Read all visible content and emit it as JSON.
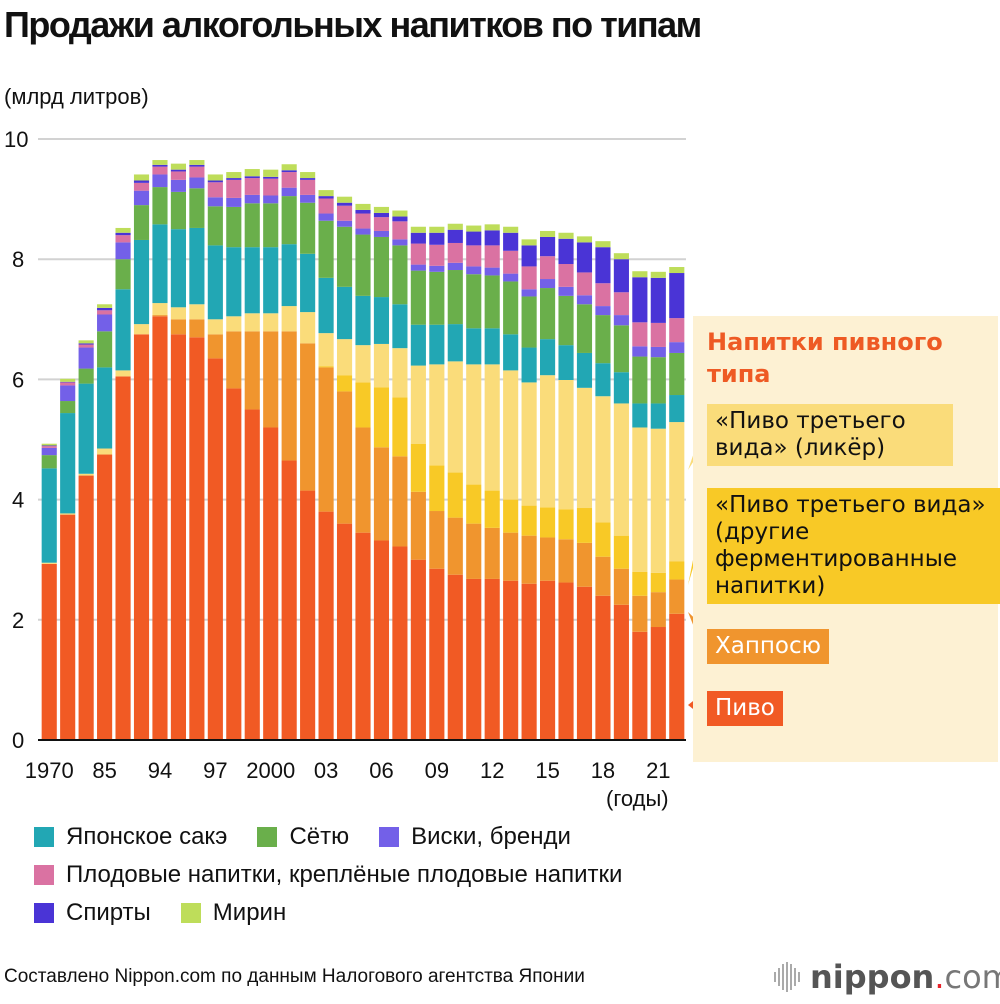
{
  "title": "Продажи алкогольных напитков по типам",
  "unit_label": "(млрд литров)",
  "x_unit_label": "(годы)",
  "source": "Составлено Nippon.com по данным Налогового агентства Японии",
  "logo": {
    "name": "nippon",
    "dot": ".",
    "suffix": "com"
  },
  "annotation_panel": {
    "title": "Напитки пивного типа",
    "labels": {
      "third_liqueur": "«Пиво третьего вида» (ликёр)",
      "third_other": "«Пиво третьего вида» (другие ферментированные напитки)",
      "happoshu": "Хаппосю",
      "beer": "Пиво"
    }
  },
  "legend": [
    {
      "key": "sake",
      "label": "Японское сакэ",
      "color": "#22A7B4"
    },
    {
      "key": "shochu",
      "label": "Сётю",
      "color": "#6AAF4B"
    },
    {
      "key": "whisky",
      "label": "Виски, бренди",
      "color": "#7360E8"
    },
    {
      "key": "fruit",
      "label": "Плодовые напитки, креплёные плодовые напитки",
      "color": "#DA72A2"
    },
    {
      "key": "spirits",
      "label": "Спирты",
      "color": "#4A34D6"
    },
    {
      "key": "mirin",
      "label": "Мирин",
      "color": "#BEDD5A"
    }
  ],
  "chart_data": {
    "type": "bar",
    "stacked": true,
    "title": "Продажи алкогольных напитков по типам",
    "ylabel": "(млрд литров)",
    "xlabel": "(годы)",
    "ylim": [
      0,
      10
    ],
    "yticks": [
      0,
      2,
      4,
      6,
      8,
      10
    ],
    "grid": true,
    "categories": [
      "1970",
      "1975",
      "1980",
      "1985",
      "1990",
      "1993",
      "1994",
      "1995",
      "1996",
      "1997",
      "1998",
      "1999",
      "2000",
      "2001",
      "2002",
      "2003",
      "2004",
      "2005",
      "2006",
      "2007",
      "2008",
      "2009",
      "2010",
      "2011",
      "2012",
      "2013",
      "2014",
      "2015",
      "2016",
      "2017",
      "2018",
      "2019",
      "2020",
      "2021",
      "2022"
    ],
    "xtick_labels": [
      {
        "index": 0,
        "label": "1970"
      },
      {
        "index": 3,
        "label": "85"
      },
      {
        "index": 6,
        "label": "94"
      },
      {
        "index": 9,
        "label": "97"
      },
      {
        "index": 12,
        "label": "2000"
      },
      {
        "index": 15,
        "label": "03"
      },
      {
        "index": 18,
        "label": "06"
      },
      {
        "index": 21,
        "label": "09"
      },
      {
        "index": 24,
        "label": "12"
      },
      {
        "index": 27,
        "label": "15"
      },
      {
        "index": 30,
        "label": "18"
      },
      {
        "index": 33,
        "label": "21"
      }
    ],
    "series": [
      {
        "name": "Пиво",
        "color": "#F15A24",
        "values": [
          2.93,
          3.75,
          4.4,
          4.75,
          6.05,
          6.75,
          7.05,
          6.75,
          6.7,
          6.35,
          5.85,
          5.5,
          5.2,
          4.65,
          4.15,
          3.8,
          3.6,
          3.45,
          3.32,
          3.22,
          3.0,
          2.85,
          2.75,
          2.68,
          2.68,
          2.65,
          2.6,
          2.65,
          2.62,
          2.55,
          2.4,
          2.25,
          1.8,
          1.88,
          2.1
        ]
      },
      {
        "name": "Хаппосю",
        "color": "#F0952E",
        "values": [
          0,
          0,
          0,
          0,
          0,
          0,
          0.02,
          0.25,
          0.3,
          0.4,
          0.95,
          1.3,
          1.6,
          2.15,
          2.45,
          2.4,
          2.2,
          1.75,
          1.55,
          1.5,
          1.13,
          0.96,
          0.95,
          0.92,
          0.85,
          0.8,
          0.8,
          0.72,
          0.72,
          0.73,
          0.65,
          0.6,
          0.6,
          0.58,
          0.57
        ]
      },
      {
        "name": "«Пиво третьего вида» (другие ферментированные напитки)",
        "color": "#F8C926",
        "values": [
          0,
          0,
          0,
          0,
          0,
          0,
          0,
          0,
          0,
          0,
          0,
          0,
          0,
          0,
          0,
          0.02,
          0.27,
          0.75,
          1.0,
          0.98,
          0.8,
          0.76,
          0.75,
          0.65,
          0.62,
          0.55,
          0.5,
          0.5,
          0.5,
          0.58,
          0.57,
          0.55,
          0.4,
          0.32,
          0.3
        ]
      },
      {
        "name": "«Пиво третьего вида» (ликёр)",
        "color": "#FADC7A",
        "values": [
          0.02,
          0.02,
          0.03,
          0.1,
          0.1,
          0.17,
          0.2,
          0.2,
          0.25,
          0.25,
          0.25,
          0.3,
          0.3,
          0.42,
          0.52,
          0.55,
          0.6,
          0.62,
          0.72,
          0.82,
          1.3,
          1.68,
          1.85,
          2.0,
          2.1,
          2.15,
          2.05,
          2.2,
          2.15,
          2.0,
          2.1,
          2.2,
          2.4,
          2.4,
          2.32
        ]
      },
      {
        "name": "Японское сакэ",
        "color": "#22A7B4",
        "values": [
          1.57,
          1.67,
          1.5,
          1.35,
          1.35,
          1.4,
          1.31,
          1.3,
          1.27,
          1.23,
          1.15,
          1.1,
          1.1,
          1.03,
          0.97,
          0.92,
          0.87,
          0.82,
          0.78,
          0.73,
          0.68,
          0.66,
          0.62,
          0.6,
          0.6,
          0.6,
          0.58,
          0.6,
          0.58,
          0.58,
          0.55,
          0.52,
          0.4,
          0.42,
          0.45
        ]
      },
      {
        "name": "Сётю",
        "color": "#6AAF4B",
        "values": [
          0.22,
          0.2,
          0.25,
          0.6,
          0.5,
          0.58,
          0.62,
          0.62,
          0.66,
          0.65,
          0.67,
          0.73,
          0.73,
          0.8,
          0.85,
          0.95,
          1.0,
          1.02,
          1.0,
          0.98,
          0.9,
          0.88,
          0.9,
          0.9,
          0.88,
          0.88,
          0.85,
          0.85,
          0.82,
          0.81,
          0.8,
          0.78,
          0.78,
          0.77,
          0.7
        ]
      },
      {
        "name": "Виски, бренди",
        "color": "#7360E8",
        "values": [
          0.12,
          0.26,
          0.35,
          0.28,
          0.28,
          0.24,
          0.21,
          0.2,
          0.18,
          0.15,
          0.15,
          0.14,
          0.13,
          0.14,
          0.13,
          0.12,
          0.1,
          0.1,
          0.1,
          0.1,
          0.1,
          0.1,
          0.12,
          0.13,
          0.13,
          0.13,
          0.12,
          0.15,
          0.15,
          0.15,
          0.15,
          0.17,
          0.17,
          0.17,
          0.18
        ]
      },
      {
        "name": "Плодовые напитки, креплёные плодовые напитки",
        "color": "#DA72A2",
        "values": [
          0.03,
          0.05,
          0.05,
          0.07,
          0.12,
          0.13,
          0.13,
          0.14,
          0.18,
          0.25,
          0.3,
          0.28,
          0.28,
          0.26,
          0.25,
          0.25,
          0.25,
          0.25,
          0.23,
          0.3,
          0.35,
          0.35,
          0.33,
          0.35,
          0.37,
          0.38,
          0.38,
          0.38,
          0.38,
          0.38,
          0.38,
          0.38,
          0.4,
          0.4,
          0.4
        ]
      },
      {
        "name": "Спирты",
        "color": "#4A34D6",
        "values": [
          0.01,
          0.01,
          0.02,
          0.04,
          0.04,
          0.04,
          0.03,
          0.03,
          0.03,
          0.03,
          0.03,
          0.03,
          0.03,
          0.03,
          0.03,
          0.04,
          0.05,
          0.06,
          0.07,
          0.08,
          0.18,
          0.2,
          0.22,
          0.23,
          0.25,
          0.3,
          0.35,
          0.32,
          0.42,
          0.5,
          0.6,
          0.55,
          0.75,
          0.75,
          0.75
        ]
      },
      {
        "name": "Мирин",
        "color": "#BEDD5A",
        "values": [
          0.03,
          0.05,
          0.05,
          0.06,
          0.08,
          0.1,
          0.08,
          0.1,
          0.08,
          0.1,
          0.1,
          0.12,
          0.12,
          0.1,
          0.1,
          0.1,
          0.1,
          0.1,
          0.1,
          0.1,
          0.1,
          0.1,
          0.1,
          0.1,
          0.1,
          0.1,
          0.1,
          0.1,
          0.1,
          0.1,
          0.1,
          0.1,
          0.1,
          0.1,
          0.1
        ]
      }
    ]
  }
}
